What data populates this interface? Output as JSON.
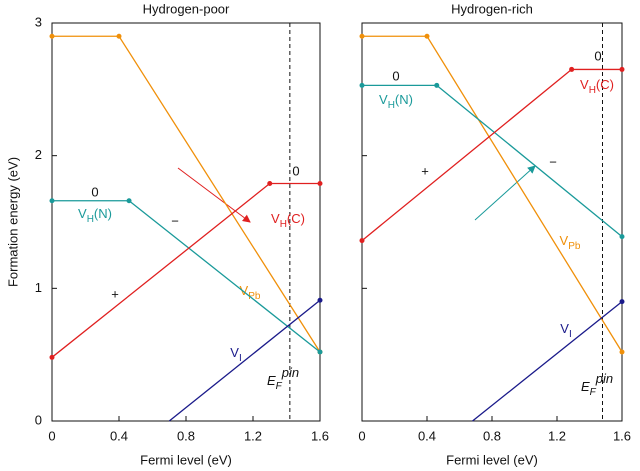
{
  "chart_data": [
    {
      "type": "line",
      "title": "Hydrogen-poor",
      "x_label": "Fermi level (eV)",
      "y_label": "Formation energy (eV)",
      "xlim": [
        0,
        1.6
      ],
      "xticks": [
        0,
        0.4,
        0.8,
        1.2,
        1.6
      ],
      "ylim": [
        0,
        3
      ],
      "yticks": [
        0,
        1,
        2,
        3
      ],
      "y_tick_labels": true,
      "series": [
        {
          "name_parts": [
            "V",
            "Pb",
            ""
          ],
          "color": "#f0900a",
          "x": [
            0,
            0.4,
            1.6
          ],
          "values": [
            2.9,
            2.9,
            0.52
          ]
        },
        {
          "name_parts": [
            "V",
            "H",
            "(N)"
          ],
          "color": "#1a9a9a",
          "x": [
            0,
            0.46,
            1.6
          ],
          "values": [
            1.66,
            1.66,
            0.52
          ]
        },
        {
          "name_parts": [
            "V",
            "H",
            "(C)"
          ],
          "color": "#e02020",
          "x": [
            0,
            1.3,
            1.6
          ],
          "values": [
            0.48,
            1.79,
            1.79
          ]
        },
        {
          "name_parts": [
            "V",
            "I",
            ""
          ],
          "color": "#1a1a8a",
          "x": [
            0.7,
            1.6
          ],
          "values": [
            0,
            0.91
          ]
        }
      ],
      "annotations": [
        {
          "text": "0",
          "color": "#1a9a9a"
        },
        {
          "text": "−",
          "color": "#1a9a9a"
        },
        {
          "text": "0",
          "color": "#e02020"
        },
        {
          "text": "+",
          "color": "#e02020"
        }
      ],
      "pin": {
        "x": 1.42,
        "label_parts": [
          "E",
          "F",
          "pin"
        ]
      }
    },
    {
      "type": "line",
      "title": "Hydrogen-rich",
      "x_label": "Fermi level (eV)",
      "xlim": [
        0,
        1.6
      ],
      "xticks": [
        0,
        0.4,
        0.8,
        1.2,
        1.6
      ],
      "ylim": [
        0,
        3
      ],
      "yticks": [
        0,
        1,
        2,
        3
      ],
      "y_tick_labels": false,
      "series": [
        {
          "name_parts": [
            "V",
            "Pb",
            ""
          ],
          "color": "#f0900a",
          "x": [
            0,
            0.4,
            1.6
          ],
          "values": [
            2.9,
            2.9,
            0.52
          ]
        },
        {
          "name_parts": [
            "V",
            "H",
            "(N)"
          ],
          "color": "#1a9a9a",
          "x": [
            0,
            0.46,
            1.6
          ],
          "values": [
            2.53,
            2.53,
            1.39
          ]
        },
        {
          "name_parts": [
            "V",
            "H",
            "(C)"
          ],
          "color": "#e02020",
          "x": [
            0,
            1.29,
            1.6
          ],
          "values": [
            1.36,
            2.65,
            2.65
          ]
        },
        {
          "name_parts": [
            "V",
            "I",
            ""
          ],
          "color": "#1a1a8a",
          "x": [
            0.68,
            1.6
          ],
          "values": [
            0,
            0.9
          ]
        }
      ],
      "annotations": [
        {
          "text": "0",
          "color": "#1a9a9a"
        },
        {
          "text": "−",
          "color": "#1a9a9a"
        },
        {
          "text": "0",
          "color": "#e02020"
        },
        {
          "text": "+",
          "color": "#e02020"
        }
      ],
      "pin": {
        "x": 1.48,
        "label_parts": [
          "E",
          "F",
          "pin"
        ]
      }
    }
  ]
}
